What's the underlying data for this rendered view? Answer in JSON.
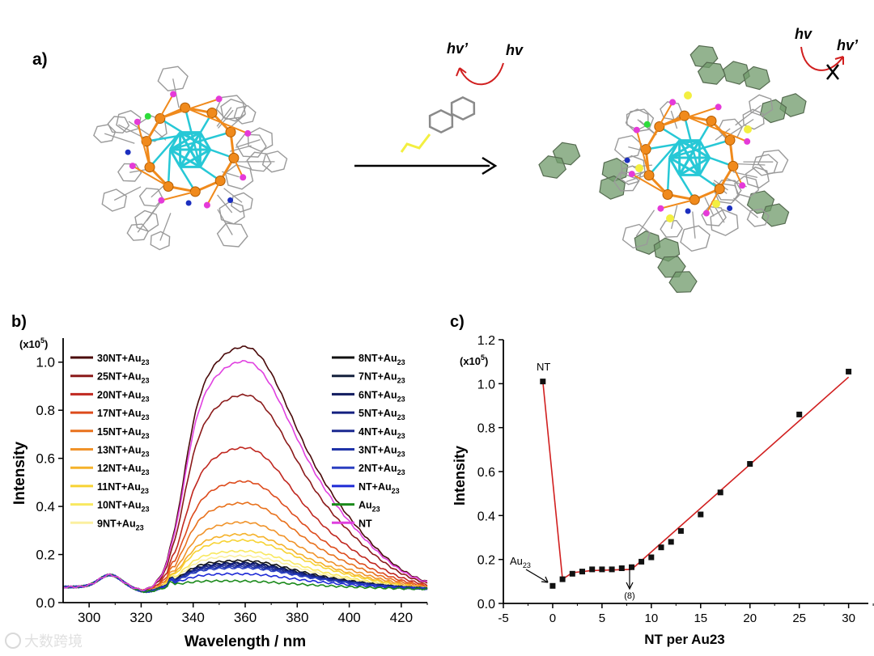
{
  "panel_a": {
    "label": "a)",
    "hv_left_1": "hv’",
    "hv_left_2": "hv",
    "hv_right_1": "hv",
    "hv_right_2": "hv’"
  },
  "colors": {
    "gold": "#f08a1c",
    "cyan": "#27c8d6",
    "magenta": "#e53ad8",
    "blue": "#1c2fbf",
    "green_cl": "#2ddc3a",
    "yellow_s": "#f3ef40",
    "ring_gray": "#9a9a9a",
    "naph_green": "#6f9a6a",
    "red_line": "#d11f1f"
  },
  "watermark": "大数跨境",
  "chart_data": [
    {
      "panel": "b)",
      "type": "line",
      "ylabel": "Intensity",
      "xlabel": "Wavelength / nm",
      "y_multiplier": "(x10",
      "y_multiplier_exp": "5",
      "y_multiplier_close": ")",
      "xlim": [
        290,
        430
      ],
      "ylim": [
        0,
        1.1
      ],
      "xticks": [
        "300",
        "320",
        "340",
        "360",
        "380",
        "400",
        "420"
      ],
      "yticks": [
        "0.0",
        "0.2",
        "0.4",
        "0.6",
        "0.8",
        "1.0"
      ],
      "series": [
        {
          "name": "30NT+Au23",
          "label_main": "30NT+Au",
          "label_sub": "23",
          "peak": 1.06,
          "color": "#4a0a0a"
        },
        {
          "name": "25NT+Au23",
          "label_main": "25NT+Au",
          "label_sub": "23",
          "peak": 0.86,
          "color": "#8b1a1a"
        },
        {
          "name": "20NT+Au23",
          "label_main": "20NT+Au",
          "label_sub": "23",
          "peak": 0.64,
          "color": "#c0271f"
        },
        {
          "name": "17NT+Au23",
          "label_main": "17NT+Au",
          "label_sub": "23",
          "peak": 0.5,
          "color": "#dd4b1c"
        },
        {
          "name": "15NT+Au23",
          "label_main": "15NT+Au",
          "label_sub": "23",
          "peak": 0.41,
          "color": "#e8711c"
        },
        {
          "name": "13NT+Au23",
          "label_main": "13NT+Au",
          "label_sub": "23",
          "peak": 0.33,
          "color": "#f0932a"
        },
        {
          "name": "12NT+Au23",
          "label_main": "12NT+Au",
          "label_sub": "23",
          "peak": 0.28,
          "color": "#f5b22a"
        },
        {
          "name": "11NT+Au23",
          "label_main": "11NT+Au",
          "label_sub": "23",
          "peak": 0.255,
          "color": "#f7d333"
        },
        {
          "name": "10NT+Au23",
          "label_main": "10NT+Au",
          "label_sub": "23",
          "peak": 0.21,
          "color": "#f8e860"
        },
        {
          "name": "9NT+Au23",
          "label_main": "9NT+Au",
          "label_sub": "23",
          "peak": 0.19,
          "color": "#fbf0a0"
        },
        {
          "name": "8NT+Au23",
          "label_main": "8NT+Au",
          "label_sub": "23",
          "peak": 0.17,
          "color": "#111111"
        },
        {
          "name": "7NT+Au23",
          "label_main": "7NT+Au",
          "label_sub": "23",
          "peak": 0.16,
          "color": "#14213d"
        },
        {
          "name": "6NT+Au23",
          "label_main": "6NT+Au",
          "label_sub": "23",
          "peak": 0.16,
          "color": "#0f1a5e"
        },
        {
          "name": "5NT+Au23",
          "label_main": "5NT+Au",
          "label_sub": "23",
          "peak": 0.155,
          "color": "#142080"
        },
        {
          "name": "4NT+Au23",
          "label_main": "4NT+Au",
          "label_sub": "23",
          "peak": 0.15,
          "color": "#1a2890"
        },
        {
          "name": "3NT+Au23",
          "label_main": "3NT+Au",
          "label_sub": "23",
          "peak": 0.145,
          "color": "#1f33a8"
        },
        {
          "name": "2NT+Au23",
          "label_main": "2NT+Au",
          "label_sub": "23",
          "peak": 0.14,
          "color": "#2a3fc0"
        },
        {
          "name": "NT+Au23",
          "label_main": "NT+Au",
          "label_sub": "23",
          "peak": 0.115,
          "color": "#1e2ad6"
        },
        {
          "name": "Au23",
          "label_main": "Au",
          "label_sub": "23",
          "peak": 0.085,
          "color": "#1b8a1b"
        },
        {
          "name": "NT",
          "label_main": "NT",
          "label_sub": "",
          "peak": 1.0,
          "color": "#e040e0"
        }
      ]
    },
    {
      "panel": "c)",
      "type": "scatter",
      "ylabel": "Intensity",
      "xlabel": "NT per Au23",
      "y_multiplier": "(x10",
      "y_multiplier_exp": "5",
      "y_multiplier_close": ")",
      "xlim": [
        -5,
        32
      ],
      "ylim": [
        0,
        1.2
      ],
      "xticks": [
        "-5",
        "0",
        "5",
        "10",
        "15",
        "20",
        "25",
        "30"
      ],
      "yticks": [
        "0.0",
        "0.2",
        "0.4",
        "0.6",
        "0.8",
        "1.0",
        "1.2"
      ],
      "annotation_nt": "NT",
      "annotation_au_main": "Au",
      "annotation_au_sub": "23",
      "annotation_break": "(8)",
      "points": [
        {
          "x": -1,
          "y": 1.01
        },
        {
          "x": 0,
          "y": 0.08
        },
        {
          "x": 1,
          "y": 0.11
        },
        {
          "x": 2,
          "y": 0.135
        },
        {
          "x": 3,
          "y": 0.145
        },
        {
          "x": 4,
          "y": 0.155
        },
        {
          "x": 5,
          "y": 0.155
        },
        {
          "x": 6,
          "y": 0.155
        },
        {
          "x": 7,
          "y": 0.16
        },
        {
          "x": 8,
          "y": 0.165
        },
        {
          "x": 9,
          "y": 0.19
        },
        {
          "x": 10,
          "y": 0.21
        },
        {
          "x": 11,
          "y": 0.255
        },
        {
          "x": 12,
          "y": 0.28
        },
        {
          "x": 13,
          "y": 0.33
        },
        {
          "x": 15,
          "y": 0.405
        },
        {
          "x": 17,
          "y": 0.505
        },
        {
          "x": 20,
          "y": 0.635
        },
        {
          "x": 25,
          "y": 0.86
        },
        {
          "x": 30,
          "y": 1.055
        }
      ],
      "fit_lines": [
        [
          {
            "x": -1,
            "y": 1.01
          },
          {
            "x": 1,
            "y": 0.11
          }
        ],
        [
          {
            "x": 1,
            "y": 0.11
          },
          {
            "x": 2,
            "y": 0.14
          },
          {
            "x": 4,
            "y": 0.15
          },
          {
            "x": 8,
            "y": 0.155
          }
        ],
        [
          {
            "x": 8,
            "y": 0.155
          },
          {
            "x": 30,
            "y": 1.03
          }
        ]
      ]
    }
  ]
}
